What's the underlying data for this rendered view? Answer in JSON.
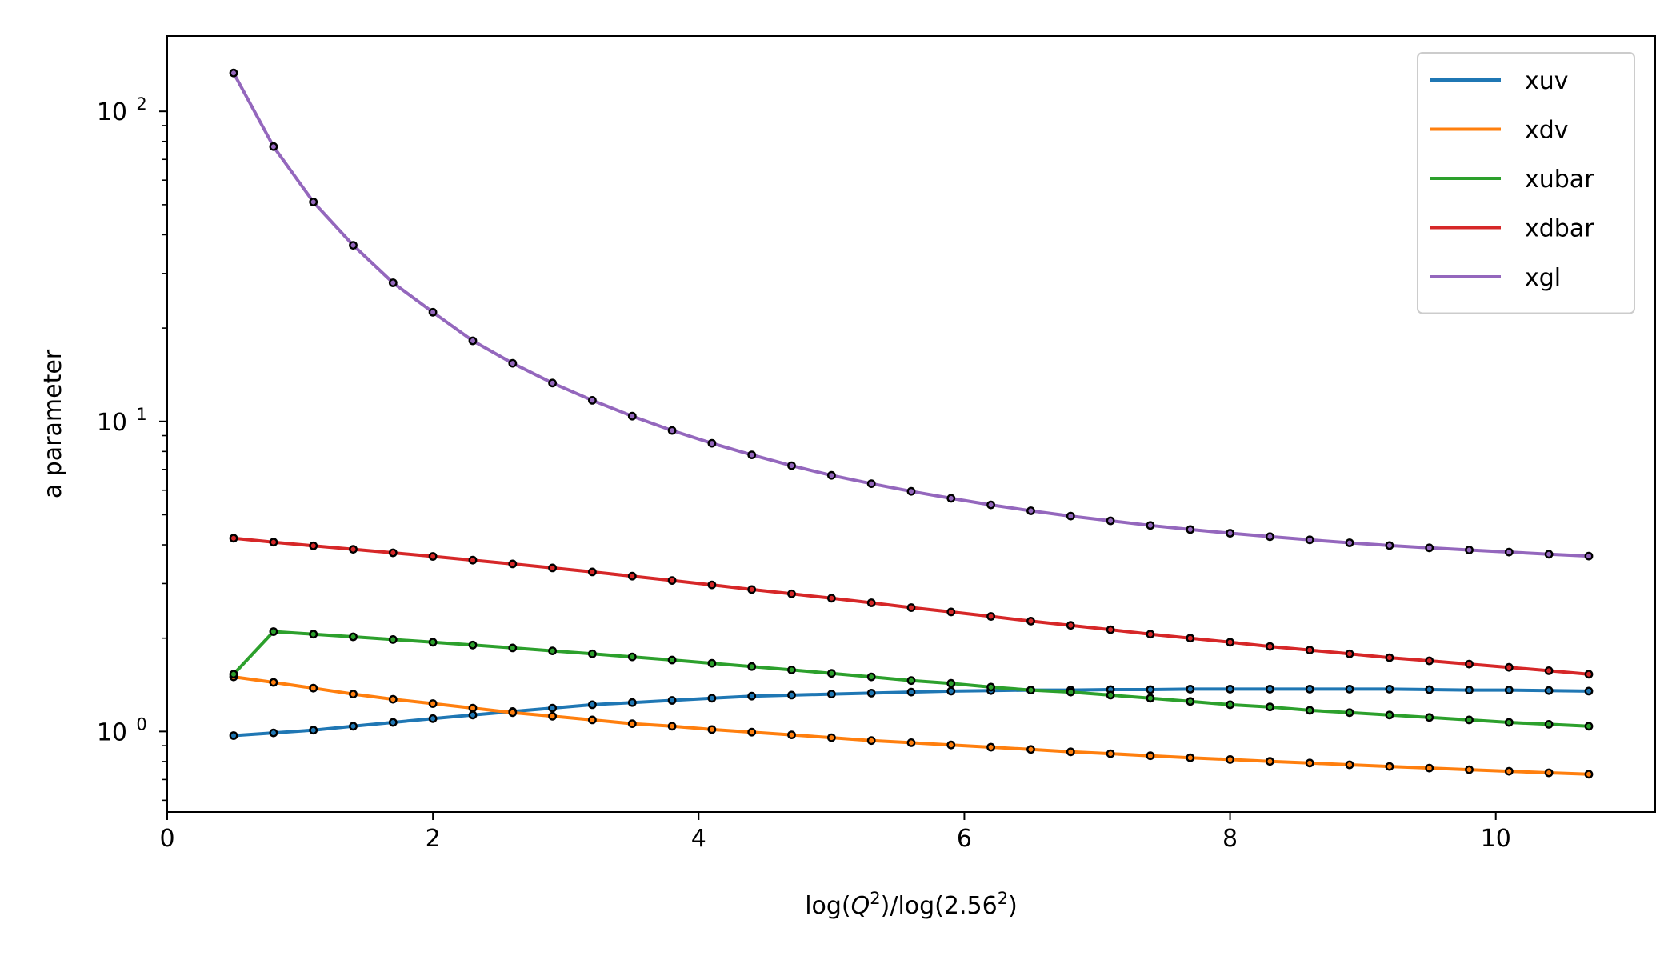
{
  "chart_data": {
    "type": "line",
    "title": "",
    "xlabel": "log(Q²)/log(2.56²)",
    "xlabel_parts": [
      "log(",
      "Q",
      "2",
      ")/log(2.56",
      "2",
      ")"
    ],
    "ylabel": "a parameter",
    "xscale": "linear",
    "yscale": "log",
    "xlim": [
      0,
      11.2
    ],
    "ylim": [
      0.55,
      175
    ],
    "xticks": [
      0,
      2,
      4,
      6,
      8,
      10
    ],
    "xtick_labels": [
      "0",
      "2",
      "4",
      "6",
      "8",
      "10"
    ],
    "yticks": [
      1,
      10,
      100
    ],
    "ytick_labels": [
      {
        "base": "10",
        "exp": "0"
      },
      {
        "base": "10",
        "exp": "1"
      },
      {
        "base": "10",
        "exp": "2"
      }
    ],
    "grid": false,
    "legend_position": "top-right",
    "markers": "small black dots",
    "x": [
      0.5,
      0.8,
      1.1,
      1.4,
      1.7,
      2.0,
      2.3,
      2.6,
      2.9,
      3.2,
      3.5,
      3.8,
      4.1,
      4.4,
      4.7,
      5.0,
      5.3,
      5.6,
      5.9,
      6.2,
      6.5,
      6.8,
      7.1,
      7.4,
      7.7,
      8.0,
      8.3,
      8.6,
      8.9,
      9.2,
      9.5,
      9.8,
      10.1,
      10.4,
      10.7
    ],
    "series": [
      {
        "name": "xuv",
        "color": "#1f77b4",
        "values": [
          0.97,
          0.99,
          1.01,
          1.04,
          1.07,
          1.1,
          1.13,
          1.16,
          1.19,
          1.22,
          1.24,
          1.26,
          1.28,
          1.3,
          1.31,
          1.32,
          1.33,
          1.34,
          1.35,
          1.355,
          1.36,
          1.36,
          1.365,
          1.365,
          1.37,
          1.37,
          1.37,
          1.37,
          1.37,
          1.37,
          1.365,
          1.36,
          1.36,
          1.355,
          1.35
        ]
      },
      {
        "name": "xdv",
        "color": "#ff7f0e",
        "values": [
          1.5,
          1.44,
          1.38,
          1.32,
          1.27,
          1.23,
          1.19,
          1.15,
          1.12,
          1.09,
          1.06,
          1.04,
          1.015,
          0.995,
          0.975,
          0.955,
          0.935,
          0.92,
          0.905,
          0.89,
          0.875,
          0.86,
          0.848,
          0.835,
          0.823,
          0.812,
          0.801,
          0.791,
          0.781,
          0.771,
          0.762,
          0.753,
          0.744,
          0.736,
          0.728
        ]
      },
      {
        "name": "xubar",
        "color": "#2ca02c",
        "values": [
          1.53,
          2.1,
          2.06,
          2.02,
          1.98,
          1.94,
          1.9,
          1.86,
          1.82,
          1.78,
          1.74,
          1.7,
          1.66,
          1.62,
          1.58,
          1.54,
          1.5,
          1.46,
          1.43,
          1.39,
          1.36,
          1.34,
          1.31,
          1.28,
          1.25,
          1.22,
          1.2,
          1.17,
          1.15,
          1.13,
          1.11,
          1.09,
          1.07,
          1.055,
          1.04
        ]
      },
      {
        "name": "xdbar",
        "color": "#d62728",
        "values": [
          4.2,
          4.08,
          3.97,
          3.87,
          3.77,
          3.67,
          3.57,
          3.47,
          3.37,
          3.27,
          3.17,
          3.07,
          2.97,
          2.87,
          2.78,
          2.69,
          2.6,
          2.51,
          2.43,
          2.35,
          2.27,
          2.2,
          2.13,
          2.06,
          2.0,
          1.94,
          1.88,
          1.83,
          1.78,
          1.73,
          1.69,
          1.65,
          1.61,
          1.57,
          1.53
        ]
      },
      {
        "name": "xgl",
        "color": "#9467bd",
        "values": [
          133,
          77,
          51,
          37,
          28,
          22.5,
          18.2,
          15.4,
          13.3,
          11.7,
          10.4,
          9.35,
          8.5,
          7.8,
          7.2,
          6.7,
          6.3,
          5.95,
          5.65,
          5.38,
          5.15,
          4.95,
          4.78,
          4.62,
          4.48,
          4.36,
          4.25,
          4.15,
          4.06,
          3.98,
          3.91,
          3.85,
          3.79,
          3.73,
          3.68
        ]
      }
    ]
  }
}
